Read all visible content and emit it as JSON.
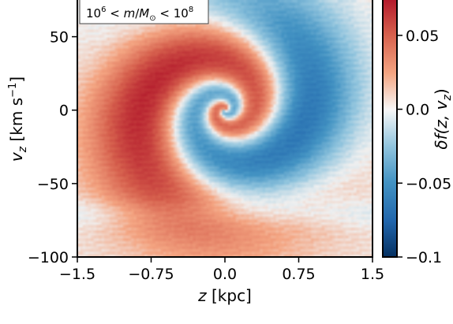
{
  "chart_data": {
    "type": "heatmap",
    "annotation": {
      "base1": "10",
      "exp1": "6",
      "lt1": " < ",
      "m_symbol": "m",
      "slash": "/",
      "M_symbol": "M",
      "sun_symbol": "⊙",
      "lt2": " < ",
      "base2": "10",
      "exp2": "8"
    },
    "xlabel": {
      "var": "z",
      "unit": " [kpc]"
    },
    "ylabel": {
      "var": "v",
      "sub": "z",
      "unit_pre": " [km s",
      "unit_exp": "−1",
      "unit_post": "]"
    },
    "colorbar_label": {
      "text": "δf(z, v",
      "sub": "z",
      "close": ")"
    },
    "xlim": [
      -1.5,
      1.5
    ],
    "ylim": [
      -100,
      75
    ],
    "xticks": [
      {
        "value": -1.5,
        "label": "−1.5"
      },
      {
        "value": -0.75,
        "label": "−0.75"
      },
      {
        "value": 0,
        "label": "0.0"
      },
      {
        "value": 0.75,
        "label": "0.75"
      },
      {
        "value": 1.5,
        "label": "1.5"
      }
    ],
    "yticks": [
      {
        "value": -100,
        "label": "−100"
      },
      {
        "value": -50,
        "label": "−50"
      },
      {
        "value": 0,
        "label": "0"
      },
      {
        "value": 50,
        "label": "50"
      }
    ],
    "colorbar": {
      "range": [
        -0.1,
        0.075
      ],
      "ticks": [
        {
          "value": -0.1,
          "label": "−0.1"
        },
        {
          "value": -0.05,
          "label": "−0.05"
        },
        {
          "value": 0,
          "label": "0.0"
        },
        {
          "value": 0.05,
          "label": "0.05"
        }
      ],
      "colormap": "RdBu_r"
    },
    "description": "Phase-space spiral: density perturbation in (z, v_z) forming a clockwise-winding spiral of positive (red) and negative (blue) arms"
  }
}
